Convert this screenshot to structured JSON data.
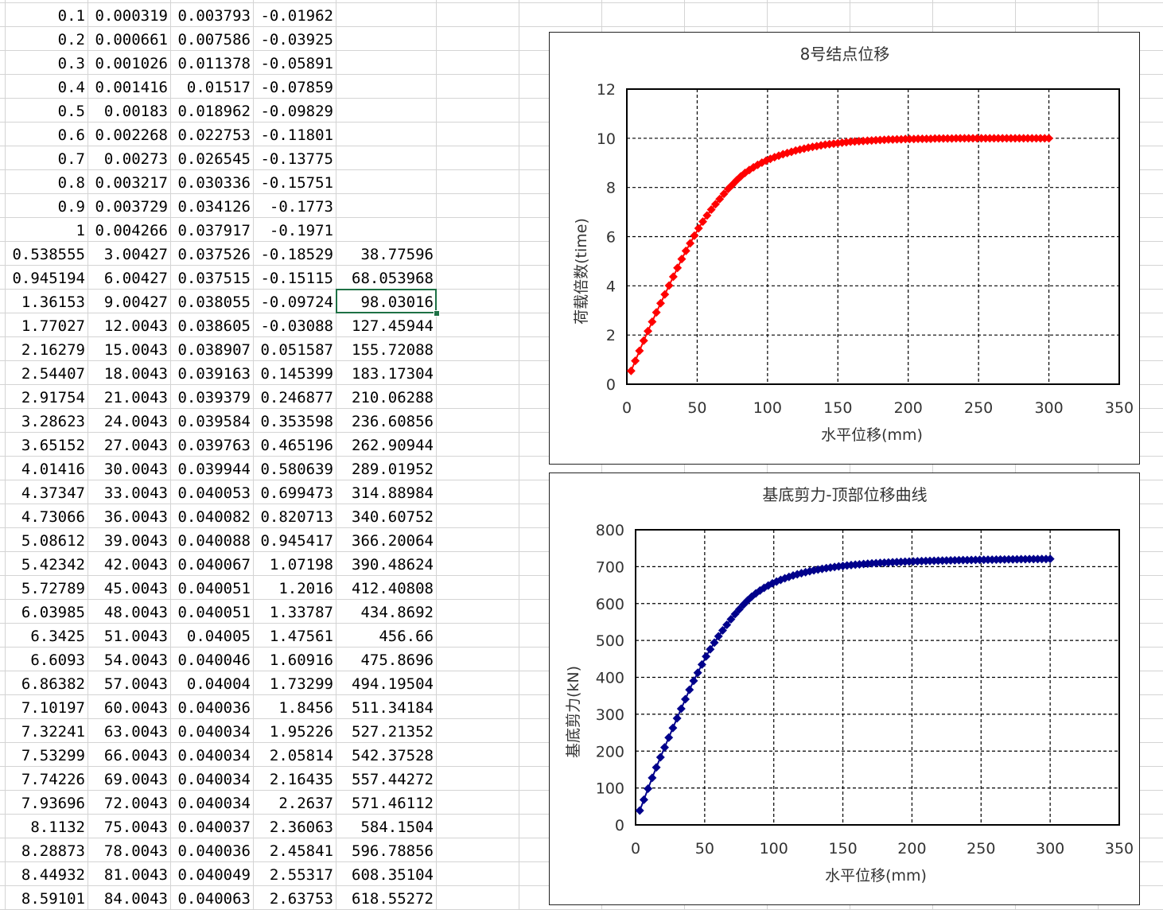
{
  "sheet": {
    "rows": [
      [
        "0.1",
        "0.000319",
        "0.003793",
        "-0.01962",
        ""
      ],
      [
        "0.2",
        "0.000661",
        "0.007586",
        "-0.03925",
        ""
      ],
      [
        "0.3",
        "0.001026",
        "0.011378",
        "-0.05891",
        ""
      ],
      [
        "0.4",
        "0.001416",
        "0.01517",
        "-0.07859",
        ""
      ],
      [
        "0.5",
        "0.00183",
        "0.018962",
        "-0.09829",
        ""
      ],
      [
        "0.6",
        "0.002268",
        "0.022753",
        "-0.11801",
        ""
      ],
      [
        "0.7",
        "0.00273",
        "0.026545",
        "-0.13775",
        ""
      ],
      [
        "0.8",
        "0.003217",
        "0.030336",
        "-0.15751",
        ""
      ],
      [
        "0.9",
        "0.003729",
        "0.034126",
        "-0.1773",
        ""
      ],
      [
        "1",
        "0.004266",
        "0.037917",
        "-0.1971",
        ""
      ],
      [
        "0.538555",
        "3.00427",
        "0.037526",
        "-0.18529",
        "38.77596"
      ],
      [
        "0.945194",
        "6.00427",
        "0.037515",
        "-0.15115",
        "68.053968"
      ],
      [
        "1.36153",
        "9.00427",
        "0.038055",
        "-0.09724",
        "98.03016"
      ],
      [
        "1.77027",
        "12.0043",
        "0.038605",
        "-0.03088",
        "127.45944"
      ],
      [
        "2.16279",
        "15.0043",
        "0.038907",
        "0.051587",
        "155.72088"
      ],
      [
        "2.54407",
        "18.0043",
        "0.039163",
        "0.145399",
        "183.17304"
      ],
      [
        "2.91754",
        "21.0043",
        "0.039379",
        "0.246877",
        "210.06288"
      ],
      [
        "3.28623",
        "24.0043",
        "0.039584",
        "0.353598",
        "236.60856"
      ],
      [
        "3.65152",
        "27.0043",
        "0.039763",
        "0.465196",
        "262.90944"
      ],
      [
        "4.01416",
        "30.0043",
        "0.039944",
        "0.580639",
        "289.01952"
      ],
      [
        "4.37347",
        "33.0043",
        "0.040053",
        "0.699473",
        "314.88984"
      ],
      [
        "4.73066",
        "36.0043",
        "0.040082",
        "0.820713",
        "340.60752"
      ],
      [
        "5.08612",
        "39.0043",
        "0.040088",
        "0.945417",
        "366.20064"
      ],
      [
        "5.42342",
        "42.0043",
        "0.040067",
        "1.07198",
        "390.48624"
      ],
      [
        "5.72789",
        "45.0043",
        "0.040051",
        "1.2016",
        "412.40808"
      ],
      [
        "6.03985",
        "48.0043",
        "0.040051",
        "1.33787",
        "434.8692"
      ],
      [
        "6.3425",
        "51.0043",
        "0.04005",
        "1.47561",
        "456.66"
      ],
      [
        "6.6093",
        "54.0043",
        "0.040046",
        "1.60916",
        "475.8696"
      ],
      [
        "6.86382",
        "57.0043",
        "0.04004",
        "1.73299",
        "494.19504"
      ],
      [
        "7.10197",
        "60.0043",
        "0.040036",
        "1.8456",
        "511.34184"
      ],
      [
        "7.32241",
        "63.0043",
        "0.040034",
        "1.95226",
        "527.21352"
      ],
      [
        "7.53299",
        "66.0043",
        "0.040034",
        "2.05814",
        "542.37528"
      ],
      [
        "7.74226",
        "69.0043",
        "0.040034",
        "2.16435",
        "557.44272"
      ],
      [
        "7.93696",
        "72.0043",
        "0.040034",
        "2.2637",
        "571.46112"
      ],
      [
        "8.1132",
        "75.0043",
        "0.040037",
        "2.36063",
        "584.1504"
      ],
      [
        "8.28873",
        "78.0043",
        "0.040036",
        "2.45841",
        "596.78856"
      ],
      [
        "8.44932",
        "81.0043",
        "0.040049",
        "2.55317",
        "608.35104"
      ],
      [
        "8.59101",
        "84.0043",
        "0.040063",
        "2.63753",
        "618.55272"
      ]
    ],
    "selected_cell": {
      "row": 12,
      "col": 4
    },
    "colors": {
      "gridline": "#d4d4d4",
      "selection": "#1e7145"
    }
  },
  "chart_data": [
    {
      "type": "scatter",
      "title": "8号结点位移",
      "xlabel": "水平位移(mm)",
      "ylabel": "荷载倍数(time)",
      "xlim": [
        0,
        350
      ],
      "ylim": [
        0,
        12
      ],
      "xticks": [
        0,
        50,
        100,
        150,
        200,
        250,
        300,
        350
      ],
      "yticks": [
        0,
        2,
        4,
        6,
        8,
        10,
        12
      ],
      "grid": true,
      "marker_color": "#ff0000",
      "x": [
        3,
        6,
        9,
        12,
        15,
        18,
        21,
        24,
        27,
        30,
        33,
        36,
        39,
        42,
        45,
        48,
        51,
        54,
        57,
        60,
        63,
        66,
        69,
        72,
        75,
        78,
        81,
        84,
        87,
        90,
        93,
        96,
        99,
        102,
        105,
        108,
        111,
        114,
        117,
        120,
        123,
        126,
        129,
        132,
        135,
        138,
        141,
        144,
        147,
        150,
        153,
        156,
        159,
        162,
        165,
        168,
        171,
        174,
        177,
        180,
        183,
        186,
        189,
        192,
        195,
        198,
        201,
        204,
        207,
        210,
        213,
        216,
        219,
        222,
        225,
        228,
        231,
        234,
        237,
        240,
        243,
        246,
        249,
        252,
        255,
        258,
        261,
        264,
        267,
        270,
        273,
        276,
        279,
        282,
        285,
        288,
        291,
        294,
        297,
        300
      ],
      "y": [
        0.54,
        0.95,
        1.36,
        1.77,
        2.16,
        2.54,
        2.92,
        3.29,
        3.65,
        4.01,
        4.37,
        4.73,
        5.09,
        5.42,
        5.73,
        6.04,
        6.34,
        6.61,
        6.86,
        7.1,
        7.32,
        7.53,
        7.74,
        7.94,
        8.11,
        8.29,
        8.45,
        8.59,
        8.71,
        8.82,
        8.92,
        9.01,
        9.09,
        9.16,
        9.23,
        9.29,
        9.35,
        9.4,
        9.45,
        9.5,
        9.54,
        9.58,
        9.62,
        9.65,
        9.68,
        9.71,
        9.74,
        9.76,
        9.78,
        9.8,
        9.82,
        9.84,
        9.86,
        9.87,
        9.88,
        9.89,
        9.9,
        9.91,
        9.92,
        9.93,
        9.94,
        9.95,
        9.95,
        9.96,
        9.96,
        9.97,
        9.97,
        9.97,
        9.98,
        9.98,
        9.98,
        9.98,
        9.99,
        9.99,
        9.99,
        9.99,
        9.99,
        10.0,
        10.0,
        10.0,
        10.0,
        10.0,
        10.0,
        10.0,
        10.0,
        10.0,
        10.0,
        10.0,
        10.0,
        10.0,
        10.0,
        10.0,
        10.0,
        10.0,
        10.0,
        10.0,
        10.0,
        10.0,
        10.0,
        10.0
      ]
    },
    {
      "type": "scatter",
      "title": "基底剪力-顶部位移曲线",
      "xlabel": "水平位移(mm)",
      "ylabel": "基底剪力(kN)",
      "xlim": [
        0,
        350
      ],
      "ylim": [
        0,
        800
      ],
      "xticks": [
        0,
        50,
        100,
        150,
        200,
        250,
        300,
        350
      ],
      "yticks": [
        0,
        100,
        200,
        300,
        400,
        500,
        600,
        700,
        800
      ],
      "grid": true,
      "marker_color": "#00008b",
      "x": [
        3,
        6,
        9,
        12,
        15,
        18,
        21,
        24,
        27,
        30,
        33,
        36,
        39,
        42,
        45,
        48,
        51,
        54,
        57,
        60,
        63,
        66,
        69,
        72,
        75,
        78,
        81,
        84,
        87,
        90,
        93,
        96,
        99,
        102,
        105,
        108,
        111,
        114,
        117,
        120,
        123,
        126,
        129,
        132,
        135,
        138,
        141,
        144,
        147,
        150,
        153,
        156,
        159,
        162,
        165,
        168,
        171,
        174,
        177,
        180,
        183,
        186,
        189,
        192,
        195,
        198,
        201,
        204,
        207,
        210,
        213,
        216,
        219,
        222,
        225,
        228,
        231,
        234,
        237,
        240,
        243,
        246,
        249,
        252,
        255,
        258,
        261,
        264,
        267,
        270,
        273,
        276,
        279,
        282,
        285,
        288,
        291,
        294,
        297,
        300
      ],
      "y": [
        38.8,
        68.1,
        98.0,
        127.5,
        155.7,
        183.2,
        210.1,
        236.6,
        262.9,
        289.0,
        314.9,
        340.6,
        366.2,
        390.5,
        412.4,
        434.9,
        456.7,
        475.9,
        494.2,
        511.3,
        527.2,
        542.4,
        557.4,
        571.5,
        584.2,
        596.8,
        608.4,
        618.6,
        627.5,
        635.4,
        642.6,
        648.9,
        654.6,
        659.6,
        664.2,
        668.4,
        672.3,
        675.9,
        679.2,
        682.2,
        685.0,
        687.6,
        690.0,
        692.2,
        694.2,
        696.0,
        697.7,
        699.3,
        700.7,
        702.0,
        703.2,
        704.3,
        705.3,
        706.3,
        707.2,
        708.0,
        708.8,
        709.5,
        710.2,
        710.8,
        711.4,
        711.9,
        712.4,
        712.9,
        713.4,
        713.8,
        714.2,
        714.6,
        715.0,
        715.3,
        715.6,
        715.9,
        716.2,
        716.5,
        716.8,
        717.0,
        717.3,
        717.5,
        717.7,
        717.9,
        718.1,
        718.3,
        718.5,
        718.7,
        718.9,
        719.0,
        719.2,
        719.4,
        719.5,
        719.7,
        719.8,
        720.0,
        720.1,
        720.2,
        720.4,
        720.5,
        720.6,
        720.7,
        720.8,
        720.9
      ]
    }
  ]
}
